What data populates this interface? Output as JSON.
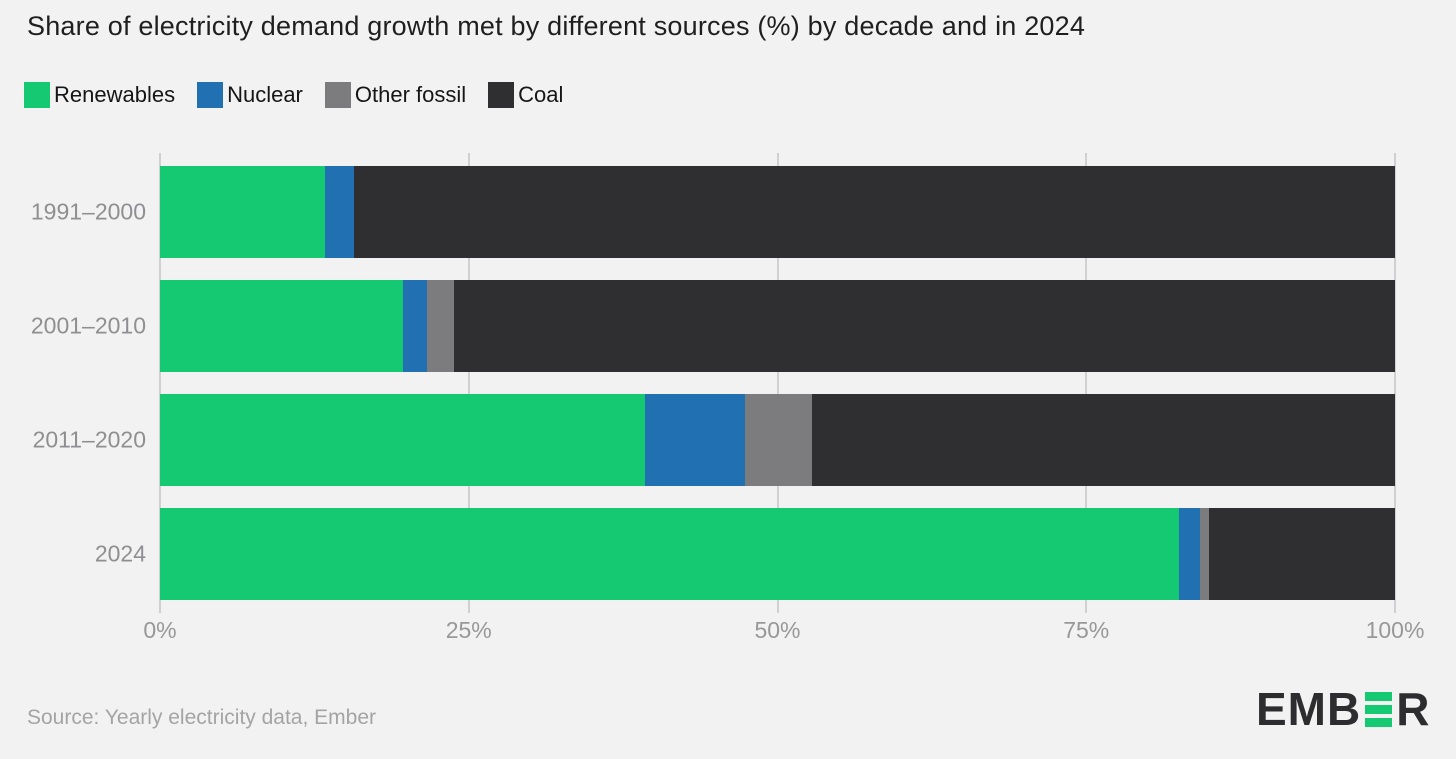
{
  "title": "Share of electricity demand growth met by different sources (%) by decade and in 2024",
  "colors": {
    "renewables": "#15c973",
    "nuclear": "#2171b2",
    "other_fossil": "#7c7c7e",
    "coal": "#2f2e30",
    "background": "#f3f2f2",
    "gridline": "#d1d0d0",
    "title_text": "#1f1f1f",
    "legend_text": "#161616",
    "axis_text": "#98989a",
    "ylabel_text": "#8f8f91",
    "source_text": "#a5a4a4",
    "logo_dark": "#2d2d2f",
    "logo_green": "#15c973"
  },
  "legend": {
    "items": [
      {
        "label": "Renewables",
        "color": "renewables"
      },
      {
        "label": "Nuclear",
        "color": "nuclear"
      },
      {
        "label": "Other fossil",
        "color": "other_fossil"
      },
      {
        "label": "Coal",
        "color": "coal"
      }
    ]
  },
  "chart_data": {
    "type": "bar",
    "orientation": "horizontal_stacked",
    "title": "Share of electricity demand growth met by different sources (%) by decade and in 2024",
    "categories": [
      "1991–2000",
      "2001–2010",
      "2011–2020",
      "2024"
    ],
    "series": [
      {
        "name": "Renewables",
        "color": "renewables",
        "values": [
          13.4,
          19.7,
          39.3,
          82.5
        ]
      },
      {
        "name": "Nuclear",
        "color": "nuclear",
        "values": [
          2.3,
          1.9,
          8.1,
          1.7
        ]
      },
      {
        "name": "Other fossil",
        "color": "other_fossil",
        "values": [
          0,
          2.2,
          5.4,
          0.7
        ]
      },
      {
        "name": "Coal",
        "color": "coal",
        "values": [
          84.3,
          76.2,
          47.2,
          15.1
        ]
      }
    ],
    "x_ticks": [
      {
        "label": "0%",
        "value": 0
      },
      {
        "label": "25%",
        "value": 25
      },
      {
        "label": "50%",
        "value": 50
      },
      {
        "label": "75%",
        "value": 75
      },
      {
        "label": "100%",
        "value": 100
      }
    ],
    "xlim": [
      0,
      100
    ],
    "grid": "vertical",
    "legend_position": "top"
  },
  "source": {
    "text": "Source: Yearly electricity data, Ember"
  },
  "logo": {
    "left": "EMB",
    "right": "R",
    "alt": "EMBER"
  }
}
